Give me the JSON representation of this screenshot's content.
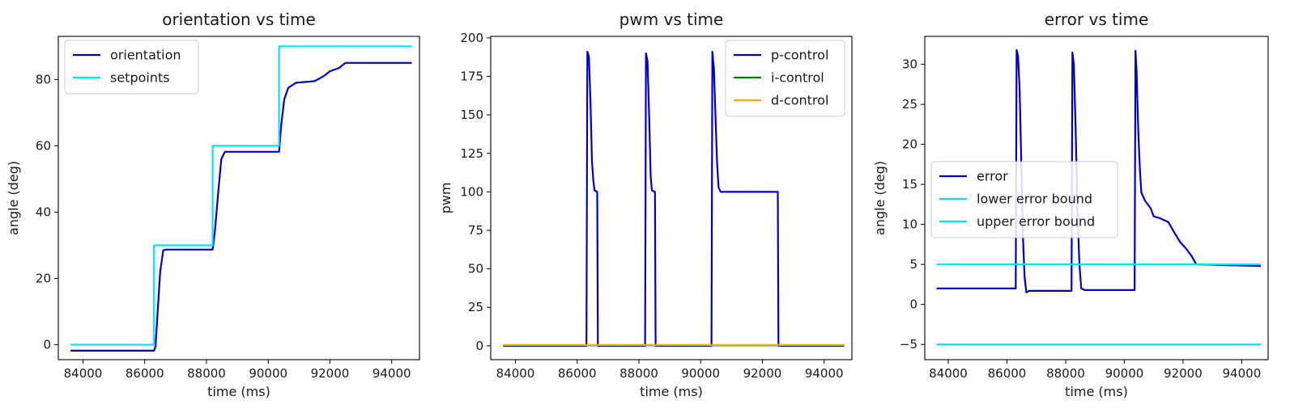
{
  "chart_data": [
    {
      "type": "line",
      "title": "orientation vs time",
      "xlabel": "time (ms)",
      "ylabel": "angle (deg)",
      "xlim": [
        83200,
        94900
      ],
      "ylim": [
        -4.5,
        93
      ],
      "xticks": [
        84000,
        86000,
        88000,
        90000,
        92000,
        94000
      ],
      "yticks": [
        0,
        20,
        40,
        60,
        80
      ],
      "legend": "top-left",
      "grid": false,
      "series": [
        {
          "name": "orientation",
          "color": "#0000cc",
          "points": [
            [
              83600,
              -1.8
            ],
            [
              86300,
              -1.8
            ],
            [
              86350,
              -0.5
            ],
            [
              86420,
              10
            ],
            [
              86500,
              22
            ],
            [
              86600,
              28.5
            ],
            [
              86700,
              28.7
            ],
            [
              88200,
              28.7
            ],
            [
              88270,
              34
            ],
            [
              88380,
              46
            ],
            [
              88480,
              56
            ],
            [
              88600,
              58.2
            ],
            [
              90350,
              58.2
            ],
            [
              90420,
              66
            ],
            [
              90520,
              74
            ],
            [
              90650,
              77.5
            ],
            [
              90900,
              79
            ],
            [
              91500,
              79.5
            ],
            [
              91800,
              81
            ],
            [
              92000,
              82.5
            ],
            [
              92300,
              83.5
            ],
            [
              92500,
              85
            ],
            [
              94650,
              85
            ]
          ]
        },
        {
          "name": "setpoints",
          "color": "#00e5ff",
          "points": [
            [
              83600,
              0
            ],
            [
              86300,
              0
            ],
            [
              86300,
              30
            ],
            [
              88200,
              30
            ],
            [
              88200,
              60
            ],
            [
              90350,
              60
            ],
            [
              90350,
              90
            ],
            [
              94650,
              90
            ]
          ]
        }
      ]
    },
    {
      "type": "line",
      "title": "pwm vs time",
      "xlabel": "time (ms)",
      "ylabel": "pwm",
      "xlim": [
        83200,
        94900
      ],
      "ylim": [
        -9,
        201
      ],
      "xticks": [
        84000,
        86000,
        88000,
        90000,
        92000,
        94000
      ],
      "yticks": [
        0,
        25,
        50,
        75,
        100,
        125,
        150,
        175,
        200
      ],
      "legend": "top-right",
      "grid": false,
      "series": [
        {
          "name": "p-control",
          "color": "#0000cc",
          "points": [
            [
              83600,
              0
            ],
            [
              86300,
              0
            ],
            [
              86330,
              191
            ],
            [
              86380,
              188
            ],
            [
              86430,
              160
            ],
            [
              86480,
              120
            ],
            [
              86520,
              108
            ],
            [
              86560,
              101
            ],
            [
              86650,
              100
            ],
            [
              86670,
              0
            ],
            [
              88200,
              0
            ],
            [
              88230,
              190
            ],
            [
              88280,
              185
            ],
            [
              88330,
              150
            ],
            [
              88380,
              110
            ],
            [
              88420,
              101
            ],
            [
              88520,
              100
            ],
            [
              88540,
              0
            ],
            [
              90350,
              0
            ],
            [
              90380,
              191
            ],
            [
              90430,
              180
            ],
            [
              90480,
              150
            ],
            [
              90530,
              120
            ],
            [
              90580,
              103
            ],
            [
              90650,
              100
            ],
            [
              92500,
              100
            ],
            [
              92520,
              0
            ],
            [
              94650,
              0
            ]
          ]
        },
        {
          "name": "i-control",
          "color": "#008000",
          "points": [
            [
              83600,
              0.3
            ],
            [
              94650,
              0.3
            ]
          ]
        },
        {
          "name": "d-control",
          "color": "#ffa500",
          "points": [
            [
              83600,
              0.5
            ],
            [
              94650,
              0.5
            ]
          ]
        }
      ]
    },
    {
      "type": "line",
      "title": "error vs time",
      "xlabel": "time (ms)",
      "ylabel": "angle (deg)",
      "xlim": [
        83200,
        94900
      ],
      "ylim": [
        -6.9,
        33.5
      ],
      "xticks": [
        84000,
        86000,
        88000,
        90000,
        92000,
        94000
      ],
      "yticks": [
        -5,
        0,
        5,
        10,
        15,
        20,
        25,
        30
      ],
      "legend": "center-left",
      "grid": false,
      "series": [
        {
          "name": "error",
          "color": "#0000cc",
          "points": [
            [
              83600,
              2
            ],
            [
              86300,
              2
            ],
            [
              86330,
              31.8
            ],
            [
              86380,
              31
            ],
            [
              86430,
              27
            ],
            [
              86480,
              19
            ],
            [
              86540,
              9
            ],
            [
              86600,
              3.5
            ],
            [
              86660,
              1.5
            ],
            [
              86750,
              1.7
            ],
            [
              88200,
              1.7
            ],
            [
              88230,
              31.5
            ],
            [
              88280,
              30
            ],
            [
              88340,
              22
            ],
            [
              88400,
              12
            ],
            [
              88470,
              5
            ],
            [
              88530,
              2
            ],
            [
              88650,
              1.8
            ],
            [
              90350,
              1.8
            ],
            [
              90380,
              31.7
            ],
            [
              90420,
              29
            ],
            [
              90470,
              22
            ],
            [
              90530,
              17
            ],
            [
              90580,
              14
            ],
            [
              90700,
              13
            ],
            [
              90900,
              12
            ],
            [
              91000,
              11
            ],
            [
              91200,
              10.8
            ],
            [
              91500,
              10.3
            ],
            [
              91700,
              9
            ],
            [
              91900,
              7.8
            ],
            [
              92100,
              7
            ],
            [
              92300,
              6
            ],
            [
              92450,
              5
            ],
            [
              92550,
              5
            ],
            [
              94650,
              4.8
            ]
          ]
        },
        {
          "name": "lower error bound",
          "color": "#00e5ff",
          "points": [
            [
              83600,
              -5
            ],
            [
              94650,
              -5
            ]
          ]
        },
        {
          "name": "upper error bound",
          "color": "#00e5ff",
          "points": [
            [
              83600,
              5
            ],
            [
              94650,
              5
            ]
          ]
        }
      ]
    }
  ]
}
